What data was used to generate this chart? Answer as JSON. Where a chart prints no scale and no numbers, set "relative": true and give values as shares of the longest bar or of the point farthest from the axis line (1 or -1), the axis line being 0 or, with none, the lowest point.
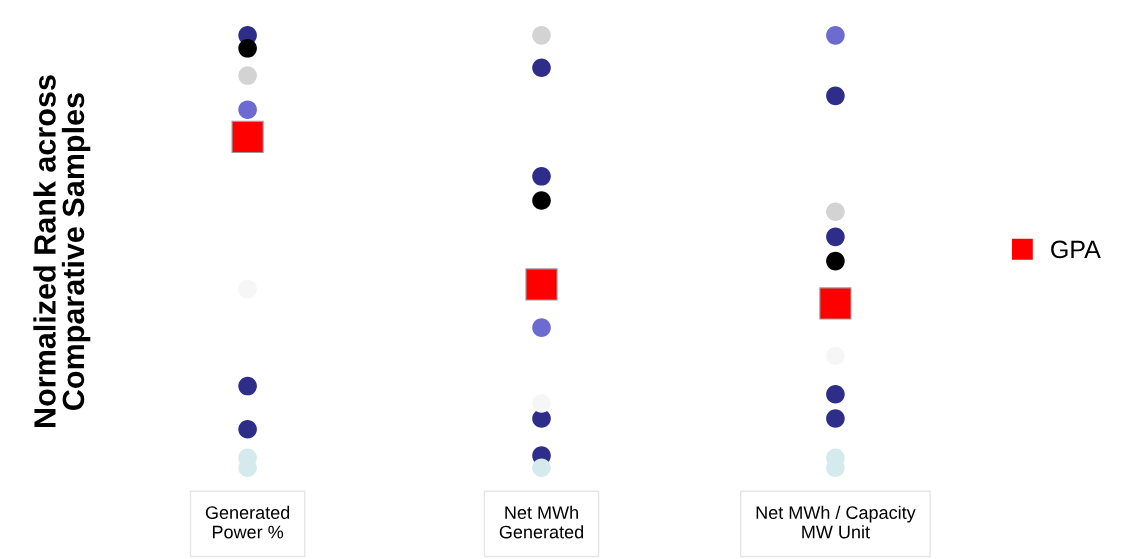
{
  "chart_data": {
    "type": "scatter",
    "relative": true,
    "ylabel": "Normalized Rank across\nComparative Samples",
    "categories": [
      "Generated\nPower %",
      "Net MWh\nGenerated",
      "Net MWh / Capacity\nMW Unit"
    ],
    "legend": "right",
    "grid": false,
    "series": [
      {
        "name": "GPA",
        "color": "#ff0000",
        "marker": "square",
        "x": [
          "Generated\nPower %",
          "Net MWh\nGenerated",
          "Net MWh / Capacity\nMW Unit"
        ],
        "values": [
          0.765,
          0.424,
          0.38
        ]
      },
      {
        "color": "#2e2e8a",
        "marker": "circle",
        "x": [
          "Generated\nPower %",
          "Generated\nPower %",
          "Generated\nPower %",
          "Net MWh\nGenerated",
          "Net MWh\nGenerated",
          "Net MWh\nGenerated",
          "Net MWh\nGenerated",
          "Net MWh / Capacity\nMW Unit",
          "Net MWh / Capacity\nMW Unit",
          "Net MWh / Capacity\nMW Unit",
          "Net MWh / Capacity\nMW Unit"
        ],
        "values": [
          1,
          0.189,
          0.089,
          0.925,
          0.674,
          0.114,
          0.028,
          0.86,
          0.534,
          0.17,
          0.114
        ]
      },
      {
        "color": "#000000",
        "marker": "circle",
        "x": [
          "Generated\nPower %",
          "Net MWh\nGenerated",
          "Net MWh / Capacity\nMW Unit"
        ],
        "values": [
          0.97,
          0.618,
          0.478
        ]
      },
      {
        "color": "#d3d3d3",
        "marker": "circle",
        "x": [
          "Generated\nPower %",
          "Net MWh\nGenerated",
          "Net MWh / Capacity\nMW Unit"
        ],
        "values": [
          0.907,
          1,
          0.592
        ]
      },
      {
        "color": "#6b6bd1",
        "marker": "circle",
        "x": [
          "Generated\nPower %",
          "Net MWh\nGenerated",
          "Net MWh / Capacity\nMW Unit"
        ],
        "values": [
          0.828,
          0.324,
          1
        ]
      },
      {
        "color": "#f6f6f6",
        "marker": "circle",
        "x": [
          "Generated\nPower %",
          "Net MWh\nGenerated",
          "Net MWh / Capacity\nMW Unit"
        ],
        "values": [
          0.413,
          0.149,
          0.259
        ]
      },
      {
        "color": "#d5eaed",
        "marker": "circle",
        "x": [
          "Generated\nPower %",
          "Generated\nPower %",
          "Net MWh\nGenerated",
          "Net MWh / Capacity\nMW Unit",
          "Net MWh / Capacity\nMW Unit"
        ],
        "values": [
          0.023,
          0,
          0,
          0.023,
          0
        ]
      }
    ]
  }
}
